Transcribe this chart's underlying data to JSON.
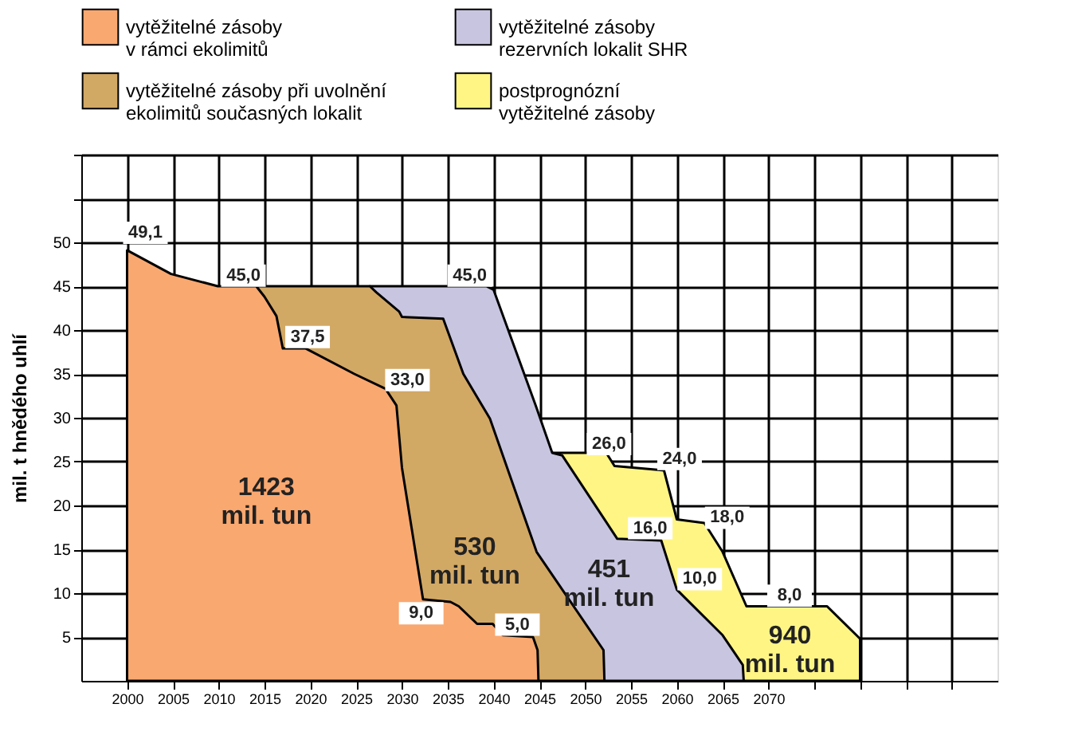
{
  "chart_data": {
    "type": "area",
    "ylabel": "mil. t hnědého uhlí",
    "legend": "top",
    "grid": true,
    "xlim": [
      1995,
      2095
    ],
    "xticks": [
      2000,
      2005,
      2010,
      2015,
      2020,
      2025,
      2030,
      2035,
      2040,
      2045,
      2050,
      2055,
      2060,
      2065,
      2070,
      {
        "value": 2075,
        "label": null
      },
      {
        "value": 2080,
        "label": null
      },
      {
        "value": 2085,
        "label": null
      },
      {
        "value": 2090,
        "label": null
      }
    ],
    "ylim": [
      0,
      60
    ],
    "yticks": [
      5,
      10,
      15,
      20,
      25,
      30,
      35,
      40,
      45,
      50,
      {
        "value": 55,
        "label": null
      },
      {
        "value": 60,
        "label": null
      }
    ],
    "series": [
      {
        "name": "vytěžitelné zásoby v rámci ekolimitů",
        "color": "#f9a870",
        "x": [
          2000,
          2004.8,
          2009.9,
          2014.1,
          2015,
          2016.3,
          2017,
          2019.5,
          2024.8,
          2028.2,
          2029.4,
          2030,
          2032.3,
          2035.3,
          2036.2,
          2038.2,
          2039.9,
          2041,
          2044.3,
          2044.8,
          2044.9
        ],
        "values": [
          49.1,
          46.4,
          45.0,
          45.0,
          43.8,
          41.6,
          37.9,
          37.9,
          35.0,
          33.3,
          31.4,
          24.3,
          9.3,
          9.0,
          8.5,
          6.5,
          6.5,
          5.2,
          5.0,
          3.5,
          0
        ]
      },
      {
        "name": "vytěžitelné zásoby při uvolnění ekolimitů současných lokalit",
        "color": "#d2a865",
        "x": [
          2014.1,
          2026.5,
          2027.2,
          2029.7,
          2030,
          2034.5,
          2036.7,
          2039.6,
          2044.7,
          2052,
          2052.1
        ],
        "values": [
          45.0,
          45.0,
          44.3,
          42.1,
          41.5,
          41.3,
          35.0,
          29.9,
          14.7,
          3.5,
          0
        ]
      },
      {
        "name": "vytěžitelné zásoby rezervních lokalit SHR",
        "color": "#c8c5e0",
        "x": [
          2026.5,
          2039.2,
          2040,
          2044.7,
          2046.4,
          2047.5,
          2053.5,
          2058.3,
          2060,
          2065,
          2067.2,
          2067.3
        ],
        "values": [
          45.0,
          45.0,
          44.6,
          31.1,
          26.0,
          25.7,
          16.2,
          16.0,
          10.4,
          5.2,
          1.8,
          0
        ]
      },
      {
        "name": "postprognózní vytěžitelné zásoby",
        "color": "#fff585",
        "x": [
          2046.4,
          2052.3,
          2053.2,
          2058.6,
          2060,
          2063,
          2065,
          2067.6,
          2076.4,
          2080
        ],
        "values": [
          26.0,
          26.0,
          24.5,
          24.0,
          18.4,
          18.0,
          14.7,
          8.5,
          8.5,
          4.8
        ]
      }
    ],
    "annotations": [
      {
        "text": "49,1",
        "x": 2002.0,
        "y": 51.1
      },
      {
        "text": "45,0",
        "x": 2012.7,
        "y": 46.2
      },
      {
        "text": "37,5",
        "x": 2019.7,
        "y": 39.2
      },
      {
        "text": "33,0",
        "x": 2030.6,
        "y": 34.3
      },
      {
        "text": "45,0",
        "x": 2037.4,
        "y": 46.2
      },
      {
        "text": "26,0",
        "x": 2052.6,
        "y": 27.0
      },
      {
        "text": "24,0",
        "x": 2060.3,
        "y": 25.3
      },
      {
        "text": "16,0",
        "x": 2057.1,
        "y": 17.4
      },
      {
        "text": "18,0",
        "x": 2065.5,
        "y": 18.6
      },
      {
        "text": "10,0",
        "x": 2062.5,
        "y": 11.6
      },
      {
        "text": "8,0",
        "x": 2072.3,
        "y": 9.7
      },
      {
        "text": "9,0",
        "x": 2032.1,
        "y": 7.7
      },
      {
        "text": "5,0",
        "x": 2042.6,
        "y": 6.4
      },
      "1423\nmil. tun",
      "530\nmil. tun",
      "451\nmil. tun",
      "940\nmil. tun"
    ]
  }
}
